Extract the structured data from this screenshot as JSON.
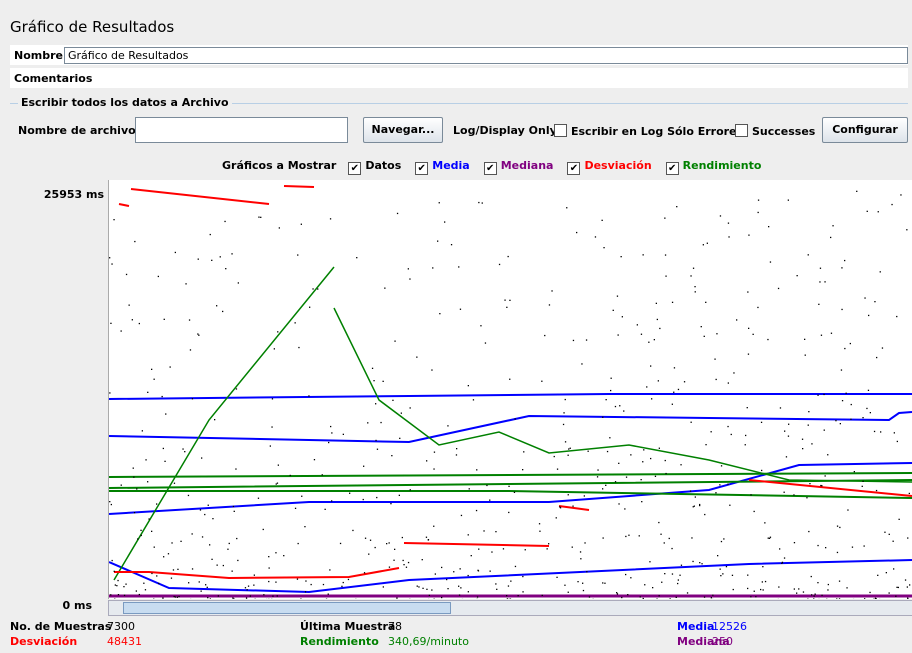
{
  "window": {
    "title": "Gráfico de Resultados"
  },
  "name": {
    "label": "Nombre:",
    "value": "Gráfico de Resultados"
  },
  "comments": {
    "label": "Comentarios"
  },
  "file": {
    "group_title": "Escribir todos los datos a Archivo",
    "label": "Nombre de archivo",
    "browse": "Navegar...",
    "log_display": "Log/Display Only:",
    "errors_only": "Escribir en Log Sólo Errores",
    "successes": "Successes",
    "configure": "Configurar"
  },
  "graph": {
    "label": "Gráficos a Mostrar",
    "options": [
      {
        "name": "Datos",
        "color": "#000000",
        "checked": true
      },
      {
        "name": "Media",
        "color": "#0000ff",
        "checked": true
      },
      {
        "name": "Mediana",
        "color": "#800080",
        "checked": true
      },
      {
        "name": "Desviación",
        "color": "#ff0000",
        "checked": true
      },
      {
        "name": "Rendimiento",
        "color": "#008000",
        "checked": true
      }
    ],
    "y_max_label": "25953 ms",
    "y_min_label": "0 ms"
  },
  "stats": [
    {
      "label": "No. de Muestras",
      "value": 7300,
      "color": "#000000"
    },
    {
      "label": "Última Muestra",
      "value": 78,
      "color": "#000000"
    },
    {
      "label": "Media",
      "value": 12526,
      "color": "#0000ff"
    },
    {
      "label": "Desviación",
      "value": 48431,
      "color": "#ff0000"
    },
    {
      "label": "Rendimiento",
      "value": "340,69/minuto",
      "color": "#008000"
    },
    {
      "label": "Mediana",
      "value": 250,
      "color": "#800080"
    }
  ]
}
